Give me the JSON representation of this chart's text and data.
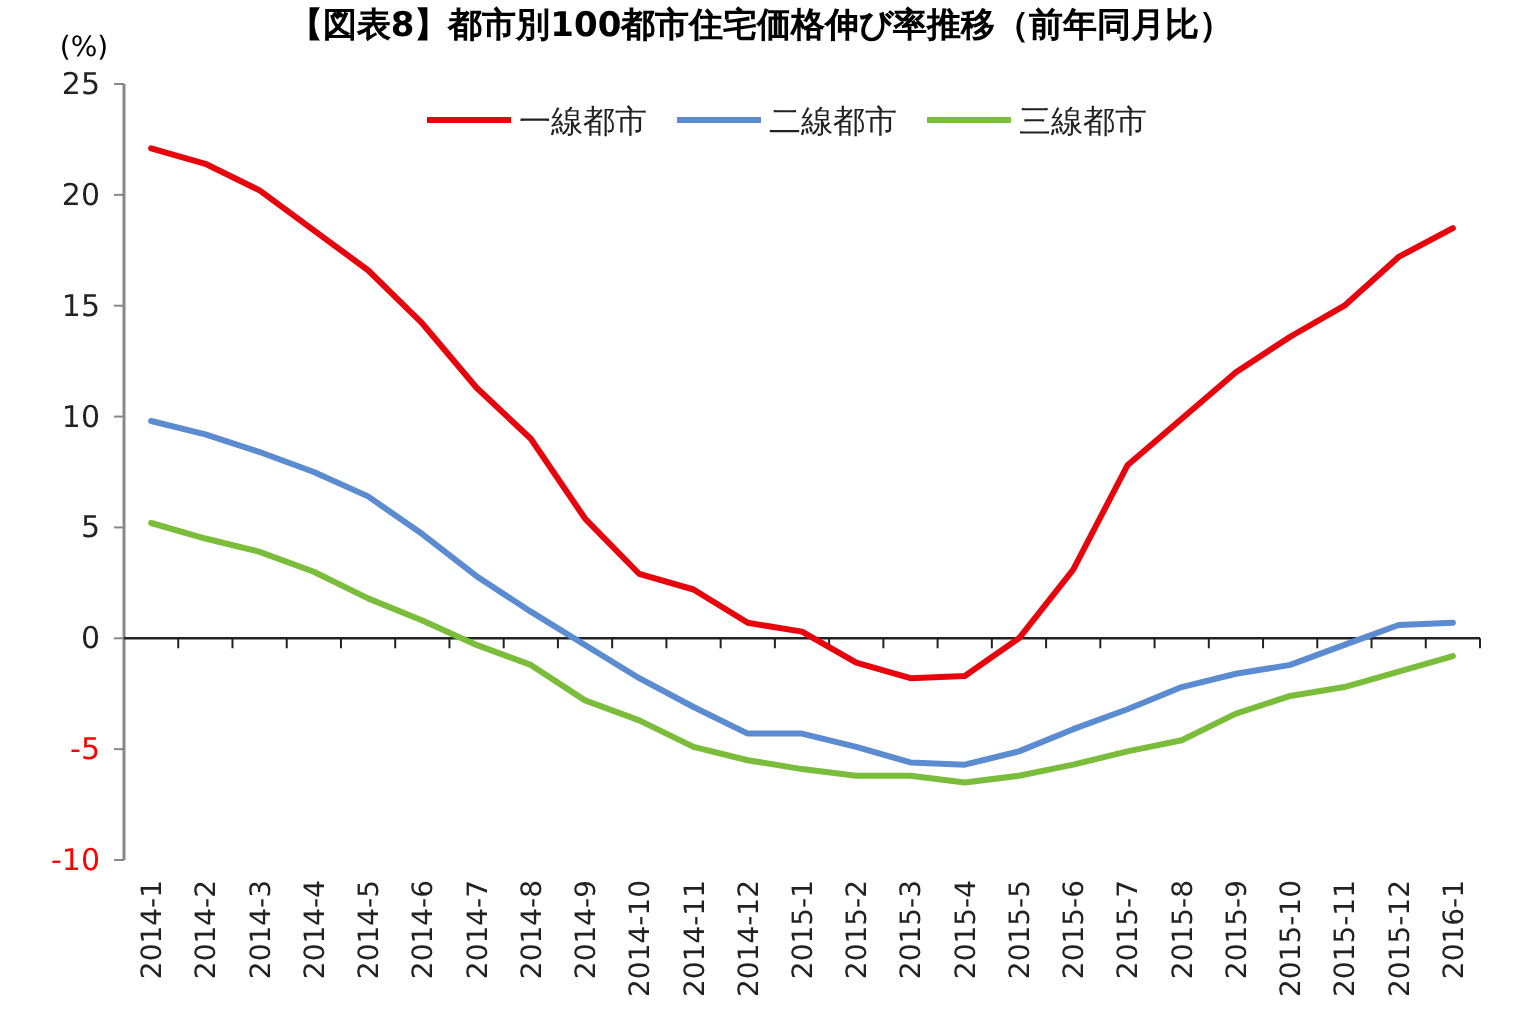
{
  "chart_data": {
    "type": "line",
    "title": "【図表8】都市別100都市住宅価格伸び率推移（前年同月比）",
    "ylabel": "(%)",
    "categories": [
      "2014-1",
      "2014-2",
      "2014-3",
      "2014-4",
      "2014-5",
      "2014-6",
      "2014-7",
      "2014-8",
      "2014-9",
      "2014-10",
      "2014-11",
      "2014-12",
      "2015-1",
      "2015-2",
      "2015-3",
      "2015-4",
      "2015-5",
      "2015-6",
      "2015-7",
      "2015-8",
      "2015-9",
      "2015-10",
      "2015-11",
      "2015-12",
      "2016-1"
    ],
    "series": [
      {
        "name": "一線都市",
        "color": "#e8040c",
        "values": [
          22.1,
          21.4,
          20.2,
          18.4,
          16.6,
          14.2,
          11.3,
          9.0,
          5.4,
          2.9,
          2.2,
          0.7,
          0.3,
          -1.1,
          -1.8,
          -1.7,
          0.0,
          3.1,
          7.8,
          9.9,
          12.0,
          13.6,
          15.0,
          17.2,
          18.5
        ]
      },
      {
        "name": "二線都市",
        "color": "#5b8bd0",
        "values": [
          9.8,
          9.2,
          8.4,
          7.5,
          6.4,
          4.7,
          2.8,
          1.2,
          -0.3,
          -1.8,
          -3.1,
          -4.3,
          -4.3,
          -4.9,
          -5.6,
          -5.7,
          -5.1,
          -4.1,
          -3.2,
          -2.2,
          -1.6,
          -1.2,
          -0.3,
          0.6,
          0.7
        ]
      },
      {
        "name": "三線都市",
        "color": "#7abd3a",
        "values": [
          5.2,
          4.5,
          3.9,
          3.0,
          1.8,
          0.8,
          -0.3,
          -1.2,
          -2.8,
          -3.7,
          -4.9,
          -5.5,
          -5.9,
          -6.2,
          -6.2,
          -6.5,
          -6.2,
          -5.7,
          -5.1,
          -4.6,
          -3.4,
          -2.6,
          -2.2,
          -1.5,
          -0.8
        ]
      }
    ],
    "ylim": [
      -10,
      25
    ],
    "yticks": [
      -10,
      -5,
      0,
      5,
      10,
      15,
      20,
      25
    ],
    "legend": "top",
    "marker": "none",
    "line_style": "solid"
  }
}
